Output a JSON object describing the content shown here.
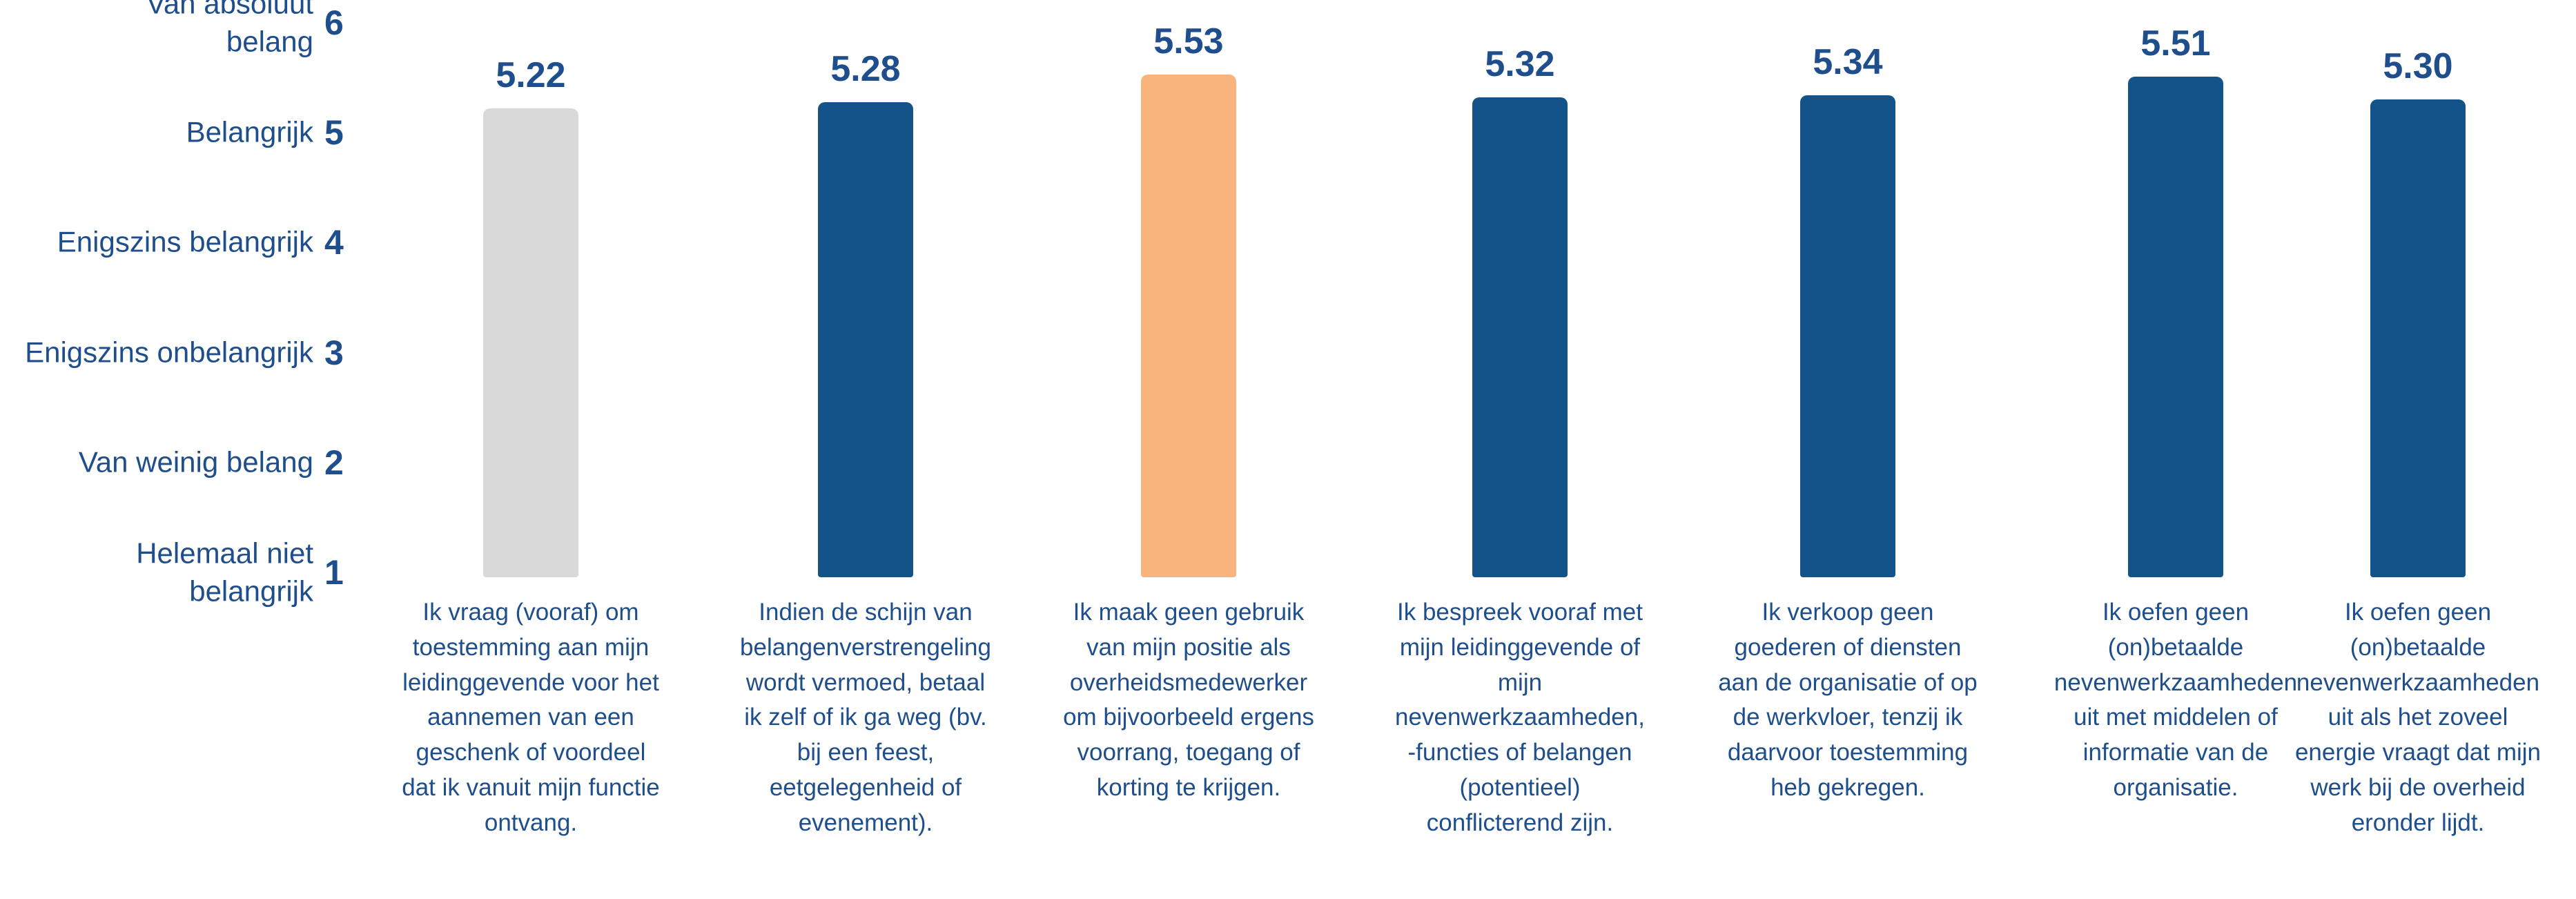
{
  "chart_data": {
    "type": "bar",
    "categories": [
      "Ik vraag (vooraf) om toestemming aan mijn leidinggevende voor het aannemen van een geschenk of voordeel dat ik vanuit mijn functie ontvang.",
      "Indien de schijn van belangenverstrengeling wordt vermoed, betaal ik zelf of ik ga weg (bv. bij een feest, eetgelegenheid of evenement).",
      "Ik maak geen gebruik van mijn positie als overheidsmedewerker om bijvoorbeeld ergens voorrang, toegang of korting te krijgen.",
      "Ik bespreek vooraf met mijn leidinggevende of mijn nevenwerkzaamheden, -functies of belangen (potentieel) conflicterend zijn.",
      "Ik verkoop geen goederen of diensten aan de organisatie of op de werkvloer, tenzij ik daarvoor toestemming heb gekregen.",
      "Ik oefen geen (on)betaalde nevenwerkzaamheden uit met middelen of informatie van de organisatie.",
      "Ik oefen geen (on)betaalde nevenwerkzaamheden uit als het zoveel energie vraagt dat mijn werk bij de overheid eronder lijdt."
    ],
    "values": [
      5.22,
      5.28,
      5.53,
      5.32,
      5.34,
      5.51,
      5.3
    ],
    "value_labels": [
      "5.22",
      "5.28",
      "5.53",
      "5.32",
      "5.34",
      "5.51",
      "5.30"
    ],
    "colors": [
      "#d9d9d9",
      "#14538a",
      "#f8b47c",
      "#14538a",
      "#14538a",
      "#14538a",
      "#14538a"
    ],
    "ylim": [
      1,
      6
    ],
    "yticks": [
      1,
      2,
      3,
      4,
      5,
      6
    ],
    "ytick_names": [
      "Helemaal niet\nbelangrijk",
      "Van weinig belang",
      "Enigszins onbelangrijk",
      "Enigszins belangrijk",
      "Belangrijk",
      "Van absoluut\nbelang"
    ],
    "grid": false
  }
}
